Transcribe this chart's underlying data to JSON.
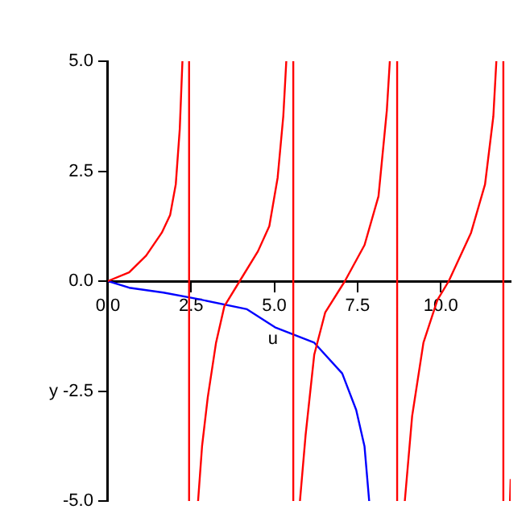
{
  "chart_data": {
    "type": "line",
    "xlabel": "u",
    "ylabel": "y",
    "xlim": [
      0,
      12.1
    ],
    "ylim": [
      -5,
      5
    ],
    "xticks": [
      {
        "value": 0,
        "label": "0.0"
      },
      {
        "value": 2.5,
        "label": "2.5"
      },
      {
        "value": 5,
        "label": "5.0"
      },
      {
        "value": 7.5,
        "label": "7.5"
      },
      {
        "value": 10,
        "label": "10.0"
      }
    ],
    "yticks": [
      {
        "value": -5,
        "label": "-5.0"
      },
      {
        "value": -2.5,
        "label": "-2.5"
      },
      {
        "value": 0,
        "label": "0.0"
      },
      {
        "value": 2.5,
        "label": "2.5"
      },
      {
        "value": 5,
        "label": "5.0"
      }
    ],
    "grid": false,
    "legend": false,
    "marker": "none",
    "line_style": "solid",
    "series": [
      {
        "color": "#ff0000",
        "x": [
          0,
          0.64,
          1.15,
          1.62,
          1.87,
          2.04,
          2.16,
          2.24,
          null,
          2.44,
          2.44,
          null,
          2.71,
          2.83,
          3.0,
          3.25,
          3.5,
          3.96,
          4.51,
          4.85,
          5.1,
          5.27,
          5.36,
          null,
          5.57,
          5.57,
          null,
          5.77,
          5.94,
          6.2,
          6.53,
          7.12,
          7.71,
          8.13,
          8.38,
          8.47,
          null,
          8.69,
          8.69,
          null,
          8.92,
          9.14,
          9.48,
          9.9,
          10.24,
          10.91,
          11.33,
          11.58,
          11.67,
          null,
          11.88,
          11.88,
          null,
          12.08,
          12.1
        ],
        "values": [
          0,
          0.2,
          0.58,
          1.1,
          1.5,
          2.2,
          3.46,
          5,
          null,
          5,
          -5,
          null,
          -5,
          -3.75,
          -2.65,
          -1.4,
          -0.57,
          0,
          0.68,
          1.25,
          2.35,
          3.75,
          5,
          null,
          5,
          -5,
          null,
          -5,
          -3.5,
          -1.67,
          -0.71,
          0,
          0.82,
          1.93,
          3.88,
          5,
          null,
          5,
          -5,
          null,
          -5,
          -3.07,
          -1.4,
          -0.43,
          0,
          1.1,
          2.2,
          3.75,
          5,
          null,
          5,
          -5,
          null,
          -5,
          -4.5
        ]
      },
      {
        "color": "#0000ff",
        "x": [
          0,
          0.64,
          1.67,
          2.66,
          4.18,
          5.02,
          6.2,
          7.04,
          7.46,
          7.71,
          7.85
        ],
        "values": [
          0,
          -0.15,
          -0.26,
          -0.4,
          -0.64,
          -1.05,
          -1.4,
          -2.1,
          -2.93,
          -3.76,
          -5
        ]
      }
    ]
  }
}
